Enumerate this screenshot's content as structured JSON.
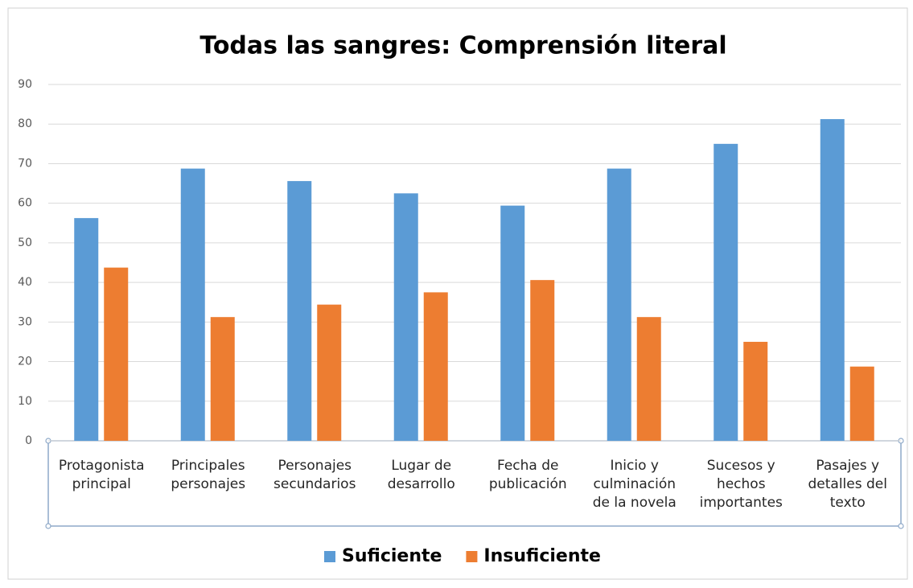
{
  "chart_data": {
    "type": "bar",
    "title": "Todas las sangres: Comprensión literal",
    "categories": [
      "Protagonista principal",
      "Principales personajes",
      "Personajes secundarios",
      "Lugar de desarrollo",
      "Fecha de publicación",
      "Inicio y culminación de la novela",
      "Sucesos y hechos importantes",
      "Pasajes y detalles del texto"
    ],
    "series": [
      {
        "name": "Suficiente",
        "color": "#5b9bd5",
        "values": [
          56.25,
          68.75,
          65.6,
          62.5,
          59.4,
          68.75,
          75,
          81.25
        ]
      },
      {
        "name": "Insuficiente",
        "color": "#ed7d31",
        "values": [
          43.75,
          31.25,
          34.4,
          37.5,
          40.6,
          31.25,
          25,
          18.75
        ]
      }
    ],
    "ylim": [
      0,
      90
    ],
    "yticks": [
      0,
      10,
      20,
      30,
      40,
      50,
      60,
      70,
      80,
      90
    ],
    "grid": true,
    "legend": "bottom"
  }
}
